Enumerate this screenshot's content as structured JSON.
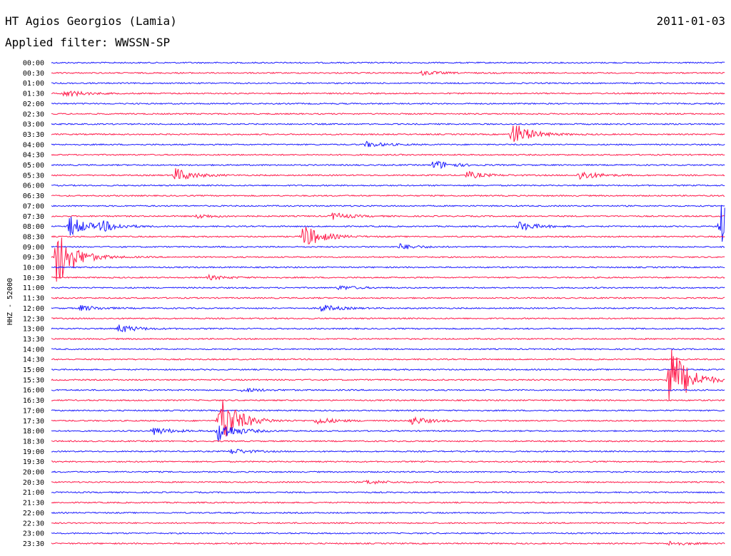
{
  "header": {
    "station": "HT Agios Georgios (Lamia)",
    "filter": "Applied filter: WWSSN-SP",
    "date": "2011-01-03"
  },
  "colors": {
    "trace_a": "#1a1aff",
    "trace_b": "#ff1a4a"
  },
  "chart_data": {
    "type": "line",
    "title": "HT Agios Georgios (Lamia)",
    "subtitle": "Applied filter: WWSSN-SP",
    "date": "2011-01-03",
    "ylabel": "HHZ - 52000",
    "xlabel": "",
    "row_labels": [
      "00:00",
      "00:30",
      "01:00",
      "01:30",
      "02:00",
      "02:30",
      "03:00",
      "03:30",
      "04:00",
      "04:30",
      "05:00",
      "05:30",
      "06:00",
      "06:30",
      "07:00",
      "07:30",
      "08:00",
      "08:30",
      "09:00",
      "09:30",
      "10:00",
      "10:30",
      "11:00",
      "11:30",
      "12:00",
      "12:30",
      "13:00",
      "13:30",
      "14:00",
      "14:30",
      "15:00",
      "15:30",
      "16:00",
      "16:30",
      "17:00",
      "17:30",
      "18:00",
      "18:30",
      "19:00",
      "19:30",
      "20:00",
      "20:30",
      "21:00",
      "21:30",
      "22:00",
      "22:30",
      "23:00",
      "23:30"
    ],
    "row_minutes": 30,
    "row_colors": "alternating blue (even rows) / red (odd rows)",
    "events": [
      {
        "row": "00:30",
        "minute": 16.5,
        "amplitude": 3
      },
      {
        "row": "01:30",
        "minute": 0.5,
        "amplitude": 3
      },
      {
        "row": "01:30",
        "minute": 0.8,
        "amplitude": 2
      },
      {
        "row": "03:30",
        "minute": 20.5,
        "amplitude": 18
      },
      {
        "row": "04:00",
        "minute": 14.0,
        "amplitude": 4
      },
      {
        "row": "05:00",
        "minute": 17.0,
        "amplitude": 7
      },
      {
        "row": "05:30",
        "minute": 5.5,
        "amplitude": 10
      },
      {
        "row": "05:30",
        "minute": 18.5,
        "amplitude": 5
      },
      {
        "row": "05:30",
        "minute": 23.5,
        "amplitude": 7
      },
      {
        "row": "07:30",
        "minute": 6.5,
        "amplitude": 3
      },
      {
        "row": "07:30",
        "minute": 12.5,
        "amplitude": 5
      },
      {
        "row": "08:00",
        "minute": 0.8,
        "amplitude": 15
      },
      {
        "row": "08:00",
        "minute": 2.2,
        "amplitude": 7
      },
      {
        "row": "08:00",
        "minute": 20.8,
        "amplitude": 7
      },
      {
        "row": "08:00",
        "minute": 29.8,
        "amplitude": 40
      },
      {
        "row": "08:30",
        "minute": 11.2,
        "amplitude": 18
      },
      {
        "row": "09:00",
        "minute": 15.5,
        "amplitude": 4
      },
      {
        "row": "09:30",
        "minute": 0.2,
        "amplitude": 45
      },
      {
        "row": "10:30",
        "minute": 7.0,
        "amplitude": 3
      },
      {
        "row": "11:00",
        "minute": 12.8,
        "amplitude": 3
      },
      {
        "row": "12:00",
        "minute": 1.3,
        "amplitude": 4
      },
      {
        "row": "12:00",
        "minute": 12.0,
        "amplitude": 5
      },
      {
        "row": "13:00",
        "minute": 3.0,
        "amplitude": 6
      },
      {
        "row": "15:30",
        "minute": 27.5,
        "amplitude": 55
      },
      {
        "row": "16:00",
        "minute": 8.5,
        "amplitude": 3
      },
      {
        "row": "17:30",
        "minute": 7.5,
        "amplitude": 40
      },
      {
        "row": "17:30",
        "minute": 11.8,
        "amplitude": 5
      },
      {
        "row": "17:30",
        "minute": 16.0,
        "amplitude": 6
      },
      {
        "row": "18:00",
        "minute": 4.5,
        "amplitude": 6
      },
      {
        "row": "18:00",
        "minute": 7.4,
        "amplitude": 15
      },
      {
        "row": "19:00",
        "minute": 8.0,
        "amplitude": 4
      },
      {
        "row": "20:30",
        "minute": 14.0,
        "amplitude": 3
      },
      {
        "row": "23:30",
        "minute": 27.5,
        "amplitude": 3
      }
    ]
  }
}
